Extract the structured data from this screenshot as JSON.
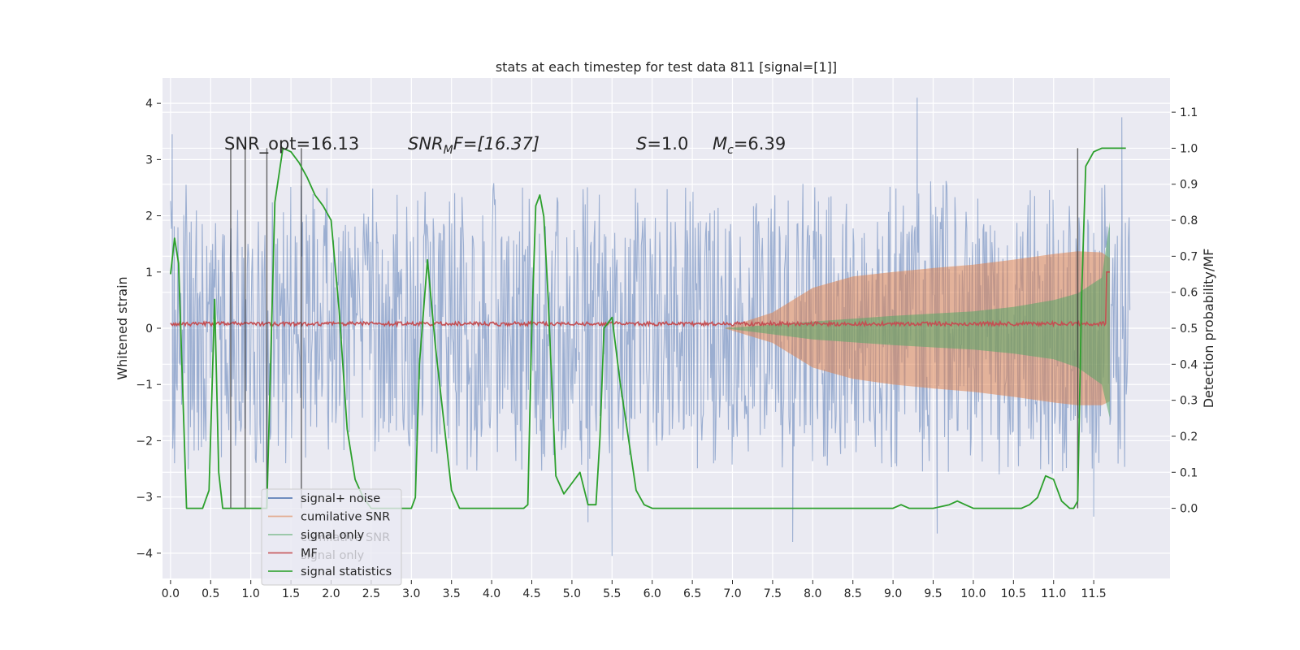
{
  "chart_data": {
    "type": "line",
    "title": "stats at each timestep for test data 811 [signal=[1]]",
    "ylabel": "Whitened strain",
    "ylabel_right": "Detection probability/MF",
    "xlim": [
      -0.1,
      12.45
    ],
    "ylim": [
      -4.45,
      4.45
    ],
    "ylim_right": [
      -0.195,
      1.195
    ],
    "x_ticks": [
      "0.0",
      "0.5",
      "1.0",
      "1.5",
      "2.0",
      "2.5",
      "3.0",
      "3.5",
      "4.0",
      "4.5",
      "5.0",
      "5.5",
      "6.0",
      "6.5",
      "7.0",
      "7.5",
      "8.0",
      "8.5",
      "9.0",
      "9.5",
      "10.0",
      "10.5",
      "11.0",
      "11.5"
    ],
    "y_ticks_left": [
      "4",
      "3",
      "2",
      "1",
      "0",
      "−1",
      "−2",
      "−3",
      "−4"
    ],
    "y_ticks_right": [
      "1.1",
      "1.0",
      "0.9",
      "0.8",
      "0.7",
      "0.6",
      "0.5",
      "0.4",
      "0.3",
      "0.2",
      "0.1",
      "0.0"
    ],
    "annotations": {
      "snr_opt": "SNR_opt=16.13",
      "snr_mf_prefix": "SNR",
      "snr_mf_sub": "M",
      "snr_mf_suffix": "F=[16.37]",
      "s_var": "S",
      "s_value": "=1.0",
      "mc_var": "M",
      "mc_sub": "c",
      "mc_value": "=6.39"
    },
    "legend": {
      "placement": "lower-left",
      "entries": [
        {
          "label": "signal+ noise",
          "color": "#4c72b0"
        },
        {
          "label": "cumilative SNR",
          "color": "#dd8452"
        },
        {
          "label": "signal only",
          "color": "#55a868"
        },
        {
          "label": "MF",
          "color": "#c44e52"
        },
        {
          "label": "signal statistics",
          "color": "#2ca02c"
        }
      ],
      "ghost_entries": [
        "cumilative SNR",
        "signal only"
      ]
    },
    "series": [
      {
        "name": "signal+ noise",
        "color": "#4c72b0",
        "envelope_x": [
          0.0,
          1.0,
          2.0,
          3.0,
          4.0,
          5.0,
          6.0,
          7.0,
          8.0,
          9.0,
          10.0,
          11.0,
          11.6,
          11.95
        ],
        "envelope_upper": [
          2.6,
          2.5,
          2.6,
          2.5,
          2.6,
          2.5,
          2.6,
          2.5,
          2.7,
          2.6,
          2.7,
          2.6,
          2.6,
          2.5
        ],
        "envelope_lower": [
          -2.6,
          -2.5,
          -2.6,
          -2.5,
          -2.6,
          -2.5,
          -2.6,
          -2.5,
          -2.6,
          -2.6,
          -2.6,
          -2.6,
          -2.6,
          -2.5
        ],
        "spikes": [
          [
            0.02,
            3.45
          ],
          [
            0.05,
            -2.4
          ],
          [
            1.2,
            -2.9
          ],
          [
            3.05,
            -2.9
          ],
          [
            5.5,
            -4.05
          ],
          [
            5.2,
            -3.45
          ],
          [
            7.75,
            -3.8
          ],
          [
            9.3,
            4.1
          ],
          [
            9.55,
            -3.65
          ],
          [
            11.85,
            3.75
          ],
          [
            11.5,
            -3.35
          ]
        ]
      },
      {
        "name": "cumilative SNR",
        "color": "#dd8452",
        "x": [
          6.9,
          7.5,
          8.0,
          8.5,
          9.0,
          9.5,
          10.0,
          10.5,
          11.0,
          11.3,
          11.6,
          11.7
        ],
        "upper": [
          0.0,
          0.28,
          0.72,
          0.92,
          1.0,
          1.07,
          1.13,
          1.22,
          1.32,
          1.37,
          1.35,
          1.25
        ],
        "lower": [
          0.0,
          -0.26,
          -0.7,
          -0.9,
          -1.0,
          -1.07,
          -1.13,
          -1.22,
          -1.32,
          -1.37,
          -1.37,
          -1.3
        ]
      },
      {
        "name": "signal only",
        "color": "#55a868",
        "x": [
          6.9,
          8.0,
          9.0,
          10.0,
          10.5,
          11.0,
          11.3,
          11.6,
          11.7
        ],
        "upper": [
          0.0,
          0.12,
          0.22,
          0.3,
          0.38,
          0.5,
          0.62,
          0.9,
          1.9
        ],
        "lower": [
          0.0,
          -0.2,
          -0.3,
          -0.38,
          -0.45,
          -0.55,
          -0.7,
          -1.0,
          -1.6
        ]
      },
      {
        "name": "MF",
        "color": "#c44e52",
        "x": [
          0.0,
          11.7
        ],
        "baseline": 0.08,
        "amplitude": 0.07,
        "peak": [
          11.68,
          1.0
        ]
      },
      {
        "name": "signal statistics",
        "color": "#2ca02c",
        "x": [
          0.0,
          0.05,
          0.1,
          0.2,
          0.3,
          0.4,
          0.48,
          0.55,
          0.6,
          0.65,
          0.7,
          0.8,
          0.9,
          1.0,
          1.1,
          1.2,
          1.3,
          1.4,
          1.5,
          1.6,
          1.7,
          1.8,
          1.9,
          2.0,
          2.1,
          2.2,
          2.3,
          2.4,
          2.5,
          2.6,
          2.8,
          3.0,
          3.05,
          3.1,
          3.2,
          3.3,
          3.4,
          3.5,
          3.6,
          3.8,
          4.0,
          4.2,
          4.4,
          4.45,
          4.5,
          4.55,
          4.6,
          4.65,
          4.7,
          4.8,
          4.9,
          5.0,
          5.1,
          5.2,
          5.3,
          5.35,
          5.4,
          5.5,
          5.6,
          5.7,
          5.8,
          5.9,
          6.0,
          6.1,
          6.3,
          6.5,
          7.0,
          7.5,
          7.7,
          8.0,
          8.5,
          9.0,
          9.1,
          9.2,
          9.5,
          9.7,
          9.8,
          9.9,
          10.0,
          10.3,
          10.5,
          10.6,
          10.7,
          10.8,
          10.9,
          11.0,
          11.1,
          11.2,
          11.25,
          11.3,
          11.35,
          11.4,
          11.5,
          11.6,
          11.7,
          11.8,
          11.9
        ],
        "values": [
          0.65,
          0.75,
          0.68,
          0.0,
          0.0,
          0.0,
          0.05,
          0.58,
          0.1,
          0.0,
          0.0,
          0.0,
          0.0,
          0.0,
          0.0,
          0.0,
          0.85,
          1.0,
          0.99,
          0.96,
          0.92,
          0.87,
          0.84,
          0.8,
          0.55,
          0.22,
          0.08,
          0.03,
          0.0,
          0.0,
          0.0,
          0.0,
          0.03,
          0.4,
          0.69,
          0.45,
          0.25,
          0.05,
          0.0,
          0.0,
          0.0,
          0.0,
          0.0,
          0.01,
          0.5,
          0.84,
          0.87,
          0.81,
          0.6,
          0.09,
          0.04,
          0.07,
          0.1,
          0.01,
          0.01,
          0.2,
          0.5,
          0.53,
          0.35,
          0.2,
          0.05,
          0.01,
          0.0,
          0.0,
          0.0,
          0.0,
          0.0,
          0.0,
          0.0,
          0.0,
          0.0,
          0.0,
          0.01,
          0.0,
          0.0,
          0.01,
          0.02,
          0.01,
          0.0,
          0.0,
          0.0,
          0.0,
          0.01,
          0.03,
          0.09,
          0.08,
          0.02,
          0.0,
          0.0,
          0.02,
          0.6,
          0.95,
          0.99,
          1.0,
          1.0,
          1.0,
          1.0
        ]
      }
    ],
    "vertical_markers_x": [
      0.75,
      0.93,
      1.2,
      1.63,
      11.3
    ]
  }
}
